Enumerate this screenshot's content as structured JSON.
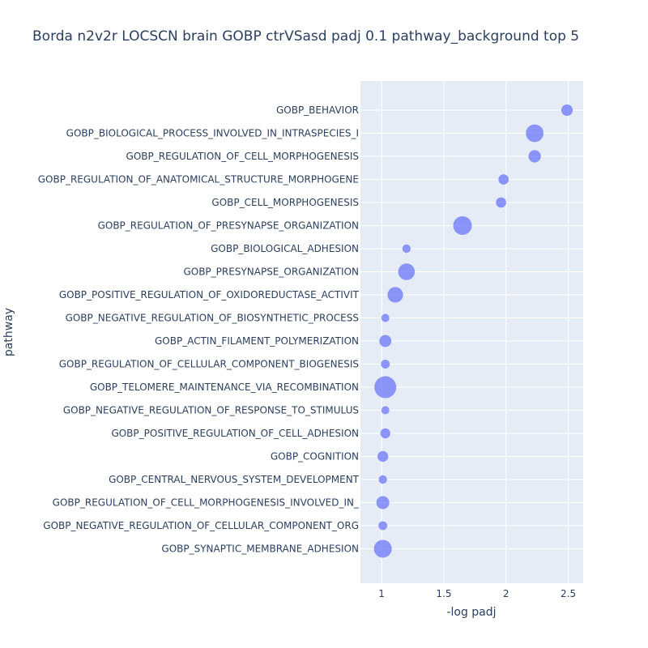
{
  "chart_data": {
    "type": "scatter",
    "title": "Borda n2v2r LOCSCN brain GOBP ctrVSasd padj 0.1 pathway_background top 5",
    "xlabel": "-log padj",
    "ylabel": "pathway",
    "xlim": [
      0.83,
      2.62
    ],
    "xticks": [
      1,
      1.5,
      2,
      2.5
    ],
    "xtick_labels": [
      "1",
      "1.5",
      "2",
      "2.5"
    ],
    "grid": true,
    "colors": {
      "marker": "#636efa",
      "plot_bg": "#e5ecf6",
      "grid": "#ffffff",
      "text": "#2a3f5f"
    },
    "marker_size_note": "relative",
    "points": [
      {
        "pathway": "GOBP_BEHAVIOR",
        "x": 2.49,
        "size": 0.17
      },
      {
        "pathway": "GOBP_BIOLOGICAL_PROCESS_INVOLVED_IN_INTRASPECIES_I",
        "x": 2.23,
        "size": 0.58
      },
      {
        "pathway": "GOBP_REGULATION_OF_CELL_MORPHOGENESIS",
        "x": 2.23,
        "size": 0.22
      },
      {
        "pathway": "GOBP_REGULATION_OF_ANATOMICAL_STRUCTURE_MORPHOGENE",
        "x": 1.98,
        "size": 0.12
      },
      {
        "pathway": "GOBP_CELL_MORPHOGENESIS",
        "x": 1.96,
        "size": 0.12
      },
      {
        "pathway": "GOBP_REGULATION_OF_PRESYNAPSE_ORGANIZATION",
        "x": 1.65,
        "size": 0.67
      },
      {
        "pathway": "GOBP_BIOLOGICAL_ADHESION",
        "x": 1.2,
        "size": 0.06
      },
      {
        "pathway": "GOBP_PRESYNAPSE_ORGANIZATION",
        "x": 1.2,
        "size": 0.5
      },
      {
        "pathway": "GOBP_POSITIVE_REGULATION_OF_OXIDOREDUCTASE_ACTIVIT",
        "x": 1.11,
        "size": 0.42
      },
      {
        "pathway": "GOBP_NEGATIVE_REGULATION_OF_BIOSYNTHETIC_PROCESS",
        "x": 1.03,
        "size": 0.05
      },
      {
        "pathway": "GOBP_ACTIN_FILAMENT_POLYMERIZATION",
        "x": 1.03,
        "size": 0.2
      },
      {
        "pathway": "GOBP_REGULATION_OF_CELLULAR_COMPONENT_BIOGENESIS",
        "x": 1.03,
        "size": 0.07
      },
      {
        "pathway": "GOBP_TELOMERE_MAINTENANCE_VIA_RECOMBINATION",
        "x": 1.03,
        "size": 1.0
      },
      {
        "pathway": "GOBP_NEGATIVE_REGULATION_OF_RESPONSE_TO_STIMULUS",
        "x": 1.03,
        "size": 0.05
      },
      {
        "pathway": "GOBP_POSITIVE_REGULATION_OF_CELL_ADHESION",
        "x": 1.03,
        "size": 0.11
      },
      {
        "pathway": "GOBP_COGNITION",
        "x": 1.01,
        "size": 0.14
      },
      {
        "pathway": "GOBP_CENTRAL_NERVOUS_SYSTEM_DEVELOPMENT",
        "x": 1.01,
        "size": 0.06
      },
      {
        "pathway": "GOBP_REGULATION_OF_CELL_MORPHOGENESIS_INVOLVED_IN_",
        "x": 1.01,
        "size": 0.25
      },
      {
        "pathway": "GOBP_NEGATIVE_REGULATION_OF_CELLULAR_COMPONENT_ORG",
        "x": 1.01,
        "size": 0.07
      },
      {
        "pathway": "GOBP_SYNAPTIC_MEMBRANE_ADHESION",
        "x": 1.01,
        "size": 0.6
      }
    ]
  }
}
